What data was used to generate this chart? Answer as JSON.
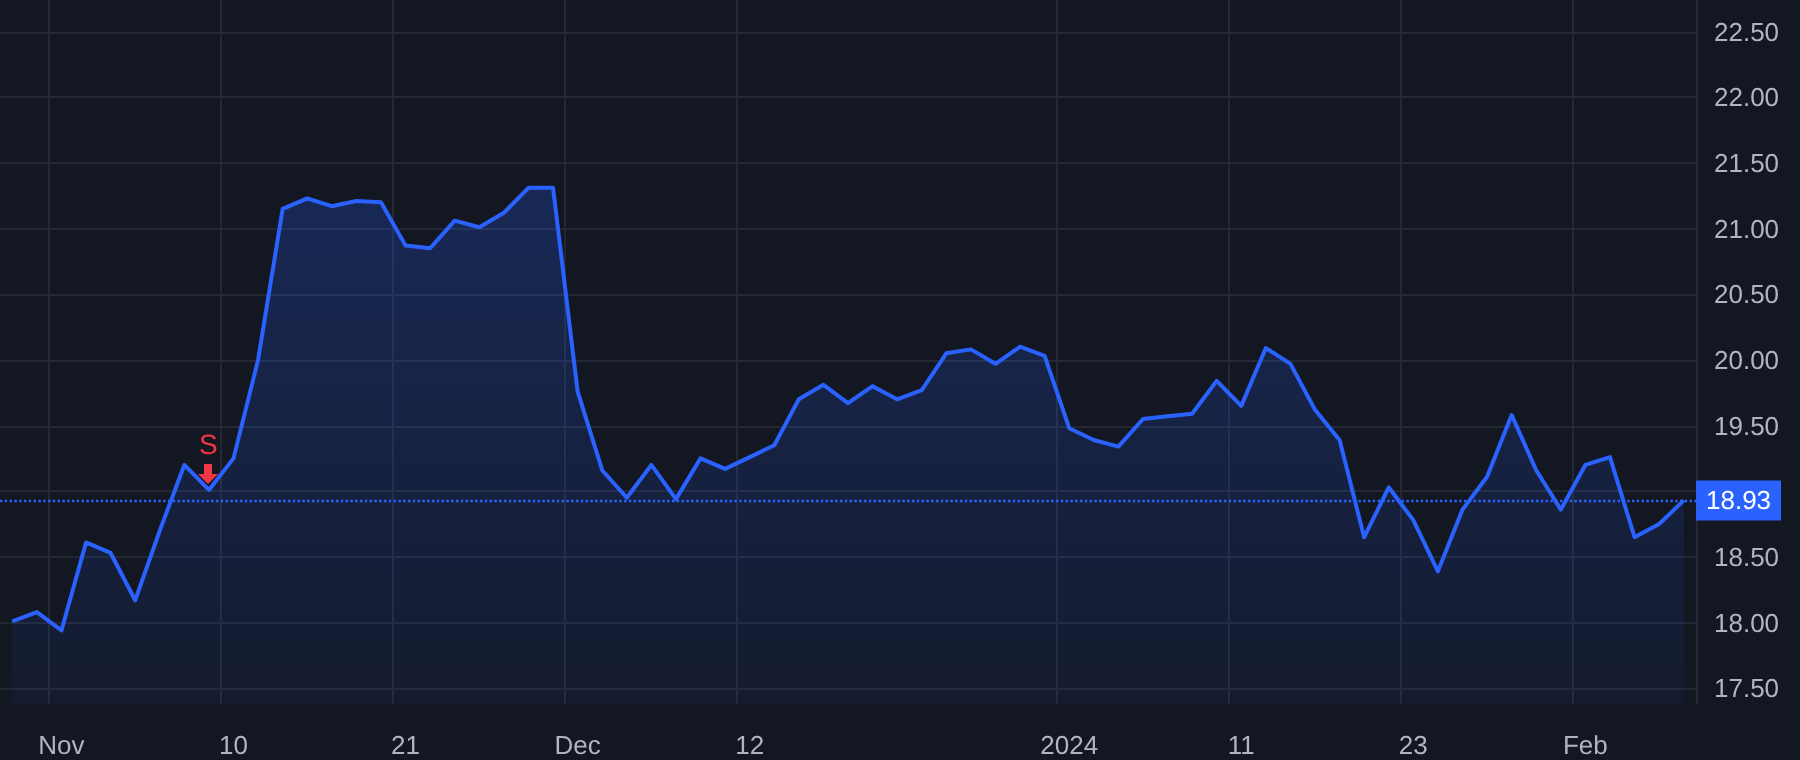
{
  "chart_data": {
    "type": "area",
    "categories": [
      null,
      null,
      "Nov",
      null,
      null,
      null,
      null,
      null,
      null,
      "10",
      null,
      null,
      null,
      null,
      null,
      null,
      "21",
      null,
      null,
      null,
      null,
      null,
      null,
      "Dec",
      null,
      null,
      null,
      null,
      null,
      null,
      "12",
      null,
      null,
      null,
      null,
      null,
      null,
      null,
      null,
      null,
      null,
      null,
      null,
      "2024",
      null,
      null,
      null,
      null,
      null,
      null,
      "11",
      null,
      null,
      null,
      null,
      null,
      null,
      "23",
      null,
      null,
      null,
      null,
      null,
      null,
      "Feb",
      null,
      null,
      null,
      null
    ],
    "series": [
      {
        "color": "#2962ff",
        "values": [
          18.01,
          18.08,
          17.94,
          18.61,
          18.53,
          18.17,
          18.7,
          19.2,
          19.01,
          19.25,
          20.0,
          21.15,
          21.23,
          21.17,
          21.21,
          21.2,
          20.87,
          20.85,
          21.06,
          21.01,
          21.12,
          21.31,
          21.31,
          19.76,
          19.16,
          18.95,
          19.2,
          18.94,
          19.25,
          19.17,
          19.26,
          19.35,
          19.7,
          19.81,
          19.67,
          19.8,
          19.7,
          19.77,
          20.05,
          20.08,
          19.97,
          20.1,
          20.03,
          19.48,
          19.39,
          19.34,
          19.55,
          19.57,
          19.59,
          19.84,
          19.65,
          20.09,
          19.97,
          19.62,
          19.39,
          18.65,
          19.03,
          18.78,
          18.39,
          18.86,
          19.11,
          19.58,
          19.16,
          18.86,
          19.2,
          19.26,
          18.65,
          18.75,
          18.93
        ]
      }
    ],
    "ylim": [
      17.38,
      22.74
    ],
    "yticks": [
      {
        "value": 17.5,
        "label": "17.50"
      },
      {
        "value": 18,
        "label": "18.00"
      },
      {
        "value": 18.5,
        "label": "18.50"
      },
      {
        "value": 19,
        "label": null
      },
      {
        "value": 19.5,
        "label": "19.50"
      },
      {
        "value": 20,
        "label": "20.00"
      },
      {
        "value": 20.5,
        "label": "20.50"
      },
      {
        "value": 21,
        "label": "21.00"
      },
      {
        "value": 21.5,
        "label": "21.50"
      },
      {
        "value": 22,
        "label": "22.00"
      },
      {
        "value": 22.5,
        "label": "22.50"
      }
    ],
    "ref_lines": [
      {
        "axis": "y",
        "value": 18.93,
        "label": "18.93",
        "color": "#2962ff",
        "line_style": "dotted"
      }
    ],
    "annotations": [
      {
        "text": "S",
        "y": 19.01
      }
    ],
    "grid": true,
    "marker": "none",
    "line_style": "solid"
  }
}
